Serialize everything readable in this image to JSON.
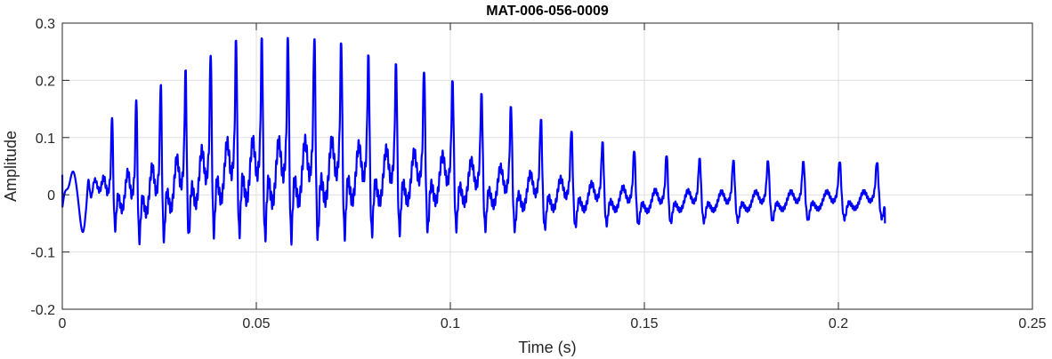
{
  "chart_data": {
    "type": "line",
    "title": "MAT-006-056-0009",
    "xlabel": "Time (s)",
    "ylabel": "Amplitude",
    "xlim": [
      0,
      0.25
    ],
    "ylim": [
      -0.2,
      0.3
    ],
    "grid": true,
    "x_tick_labels": [
      "0",
      "0.05",
      "0.1",
      "0.15",
      "0.2",
      "0.25"
    ],
    "y_tick_labels": [
      "-0.2",
      "-0.1",
      "0",
      "0.1",
      "0.2",
      "0.3"
    ],
    "series": [
      {
        "color": "#0000ff",
        "signal": {
          "duration": 0.212,
          "sample_rate": 22050,
          "start_value": 0.035,
          "end_value": -0.05,
          "f0_start_hz": 165,
          "f0_end_hz": 102,
          "peak_envelope": [
            [
              0.0,
              0.05
            ],
            [
              0.005,
              0.05
            ],
            [
              0.01,
              0.12
            ],
            [
              0.02,
              0.17
            ],
            [
              0.03,
              0.21
            ],
            [
              0.045,
              0.27
            ],
            [
              0.055,
              0.275
            ],
            [
              0.07,
              0.27
            ],
            [
              0.08,
              0.24
            ],
            [
              0.09,
              0.22
            ],
            [
              0.1,
              0.2
            ],
            [
              0.11,
              0.17
            ],
            [
              0.12,
              0.14
            ],
            [
              0.135,
              0.1
            ],
            [
              0.15,
              0.07
            ],
            [
              0.17,
              0.06
            ],
            [
              0.212,
              0.055
            ]
          ],
          "trough_envelope": [
            [
              0.0,
              -0.05
            ],
            [
              0.01,
              -0.08
            ],
            [
              0.02,
              -0.13
            ],
            [
              0.04,
              -0.13
            ],
            [
              0.055,
              -0.15
            ],
            [
              0.07,
              -0.14
            ],
            [
              0.08,
              -0.13
            ],
            [
              0.1,
              -0.11
            ],
            [
              0.12,
              -0.1
            ],
            [
              0.14,
              -0.08
            ],
            [
              0.16,
              -0.07
            ],
            [
              0.212,
              -0.06
            ]
          ]
        }
      }
    ]
  }
}
